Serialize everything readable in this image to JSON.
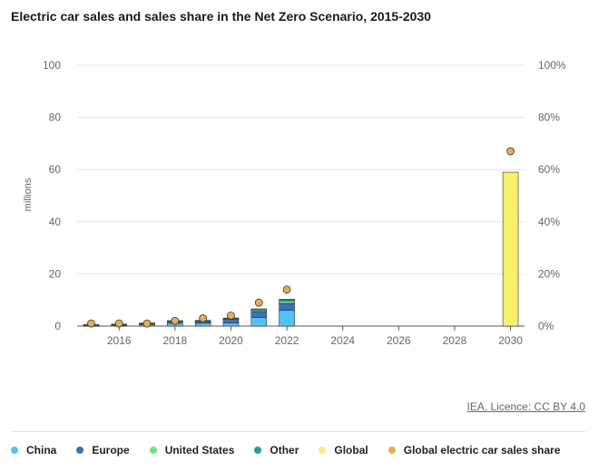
{
  "title": "Electric car sales and sales share in the Net Zero Scenario, 2015-2030",
  "source_text": "IEA. Licence: CC BY 4.0",
  "colors": {
    "China": "#4fc3f7",
    "Europe": "#3a6fc4",
    "United States": "#6be38a",
    "Other": "#1aa39a",
    "Global": "#f8ef6a",
    "Global electric car sales share": "#e8b04a"
  },
  "chart_data": {
    "type": "bar",
    "stacked": true,
    "title": "Electric car sales and sales share in the Net Zero Scenario, 2015-2030",
    "ylabel": "millions",
    "ylim": [
      0,
      100
    ],
    "y2lim": [
      0,
      100
    ],
    "y_ticks": [
      "0",
      "20",
      "40",
      "60",
      "80",
      "100"
    ],
    "y2_ticks": [
      "0%",
      "20%",
      "40%",
      "60%",
      "80%",
      "100%"
    ],
    "x_tick_labels": [
      "2016",
      "2018",
      "2020",
      "2022",
      "2024",
      "2026",
      "2028",
      "2030"
    ],
    "years": [
      2015,
      2016,
      2017,
      2018,
      2019,
      2020,
      2021,
      2022,
      2023,
      2024,
      2025,
      2026,
      2027,
      2028,
      2029,
      2030
    ],
    "grid": true,
    "legend_position": "bottom",
    "series": [
      {
        "name": "China",
        "values": [
          0.2,
          0.3,
          0.6,
          1.1,
          1.1,
          1.2,
          3.3,
          6.0,
          null,
          null,
          null,
          null,
          null,
          null,
          null,
          null
        ]
      },
      {
        "name": "Europe",
        "values": [
          0.2,
          0.2,
          0.3,
          0.4,
          0.6,
          1.4,
          2.3,
          2.7,
          null,
          null,
          null,
          null,
          null,
          null,
          null,
          null
        ]
      },
      {
        "name": "United States",
        "values": [
          0.1,
          0.2,
          0.2,
          0.4,
          0.3,
          0.3,
          0.6,
          1.0,
          null,
          null,
          null,
          null,
          null,
          null,
          null,
          null
        ]
      },
      {
        "name": "Other",
        "values": [
          0.05,
          0.05,
          0.1,
          0.2,
          0.2,
          0.2,
          0.4,
          0.6,
          null,
          null,
          null,
          null,
          null,
          null,
          null,
          null
        ]
      },
      {
        "name": "Global",
        "values": [
          null,
          null,
          null,
          null,
          null,
          null,
          null,
          null,
          null,
          null,
          null,
          null,
          null,
          null,
          null,
          59
        ]
      }
    ],
    "share_series": {
      "name": "Global electric car sales share",
      "axis": "right",
      "values": [
        1,
        1,
        1,
        2,
        3,
        4,
        9,
        14,
        null,
        null,
        null,
        null,
        null,
        null,
        null,
        67
      ]
    }
  }
}
